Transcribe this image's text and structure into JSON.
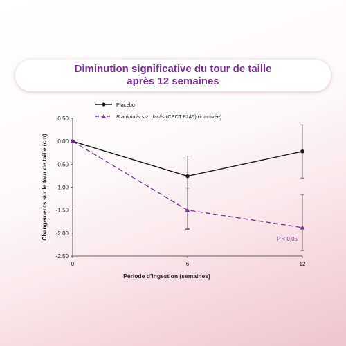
{
  "title": {
    "line1": "Diminution significative du tour de taille",
    "line2": "après 12 semaines"
  },
  "chart_data": {
    "type": "line",
    "xlabel": "Période d’ingestion (semaines)",
    "ylabel": "Changements sur le tour de taille (cm)",
    "x": [
      0,
      6,
      12
    ],
    "xticks": [
      "0",
      "6",
      "12"
    ],
    "ylim": [
      -2.5,
      0.5
    ],
    "yticks": [
      "0.50",
      "0.00",
      "-0.50",
      "-1.00",
      "-1.50",
      "-2.00",
      "-2.50"
    ],
    "grid": false,
    "legend_position": "top-left",
    "series": [
      {
        "name": "Placebo",
        "name_italic": "",
        "values": [
          0.0,
          -0.76,
          -0.22
        ],
        "error_low": [
          0.0,
          -1.9,
          -0.8
        ],
        "error_high": [
          0.0,
          -0.32,
          0.36
        ],
        "color": "#1a1a1a",
        "style": "solid",
        "marker": "circle"
      },
      {
        "name": " (CECT 8145) (inactivée)",
        "name_italic": "B.animalis ssp. lactis",
        "values": [
          0.0,
          -1.5,
          -1.88
        ],
        "error_low": [
          0.0,
          -1.92,
          -2.38
        ],
        "error_high": [
          0.0,
          -1.02,
          -1.16
        ],
        "color": "#7b3d91",
        "style": "dashed",
        "marker": "triangle"
      }
    ],
    "annotations": [
      {
        "text": "P < 0,05",
        "x": 12,
        "y": -2.12
      }
    ]
  }
}
